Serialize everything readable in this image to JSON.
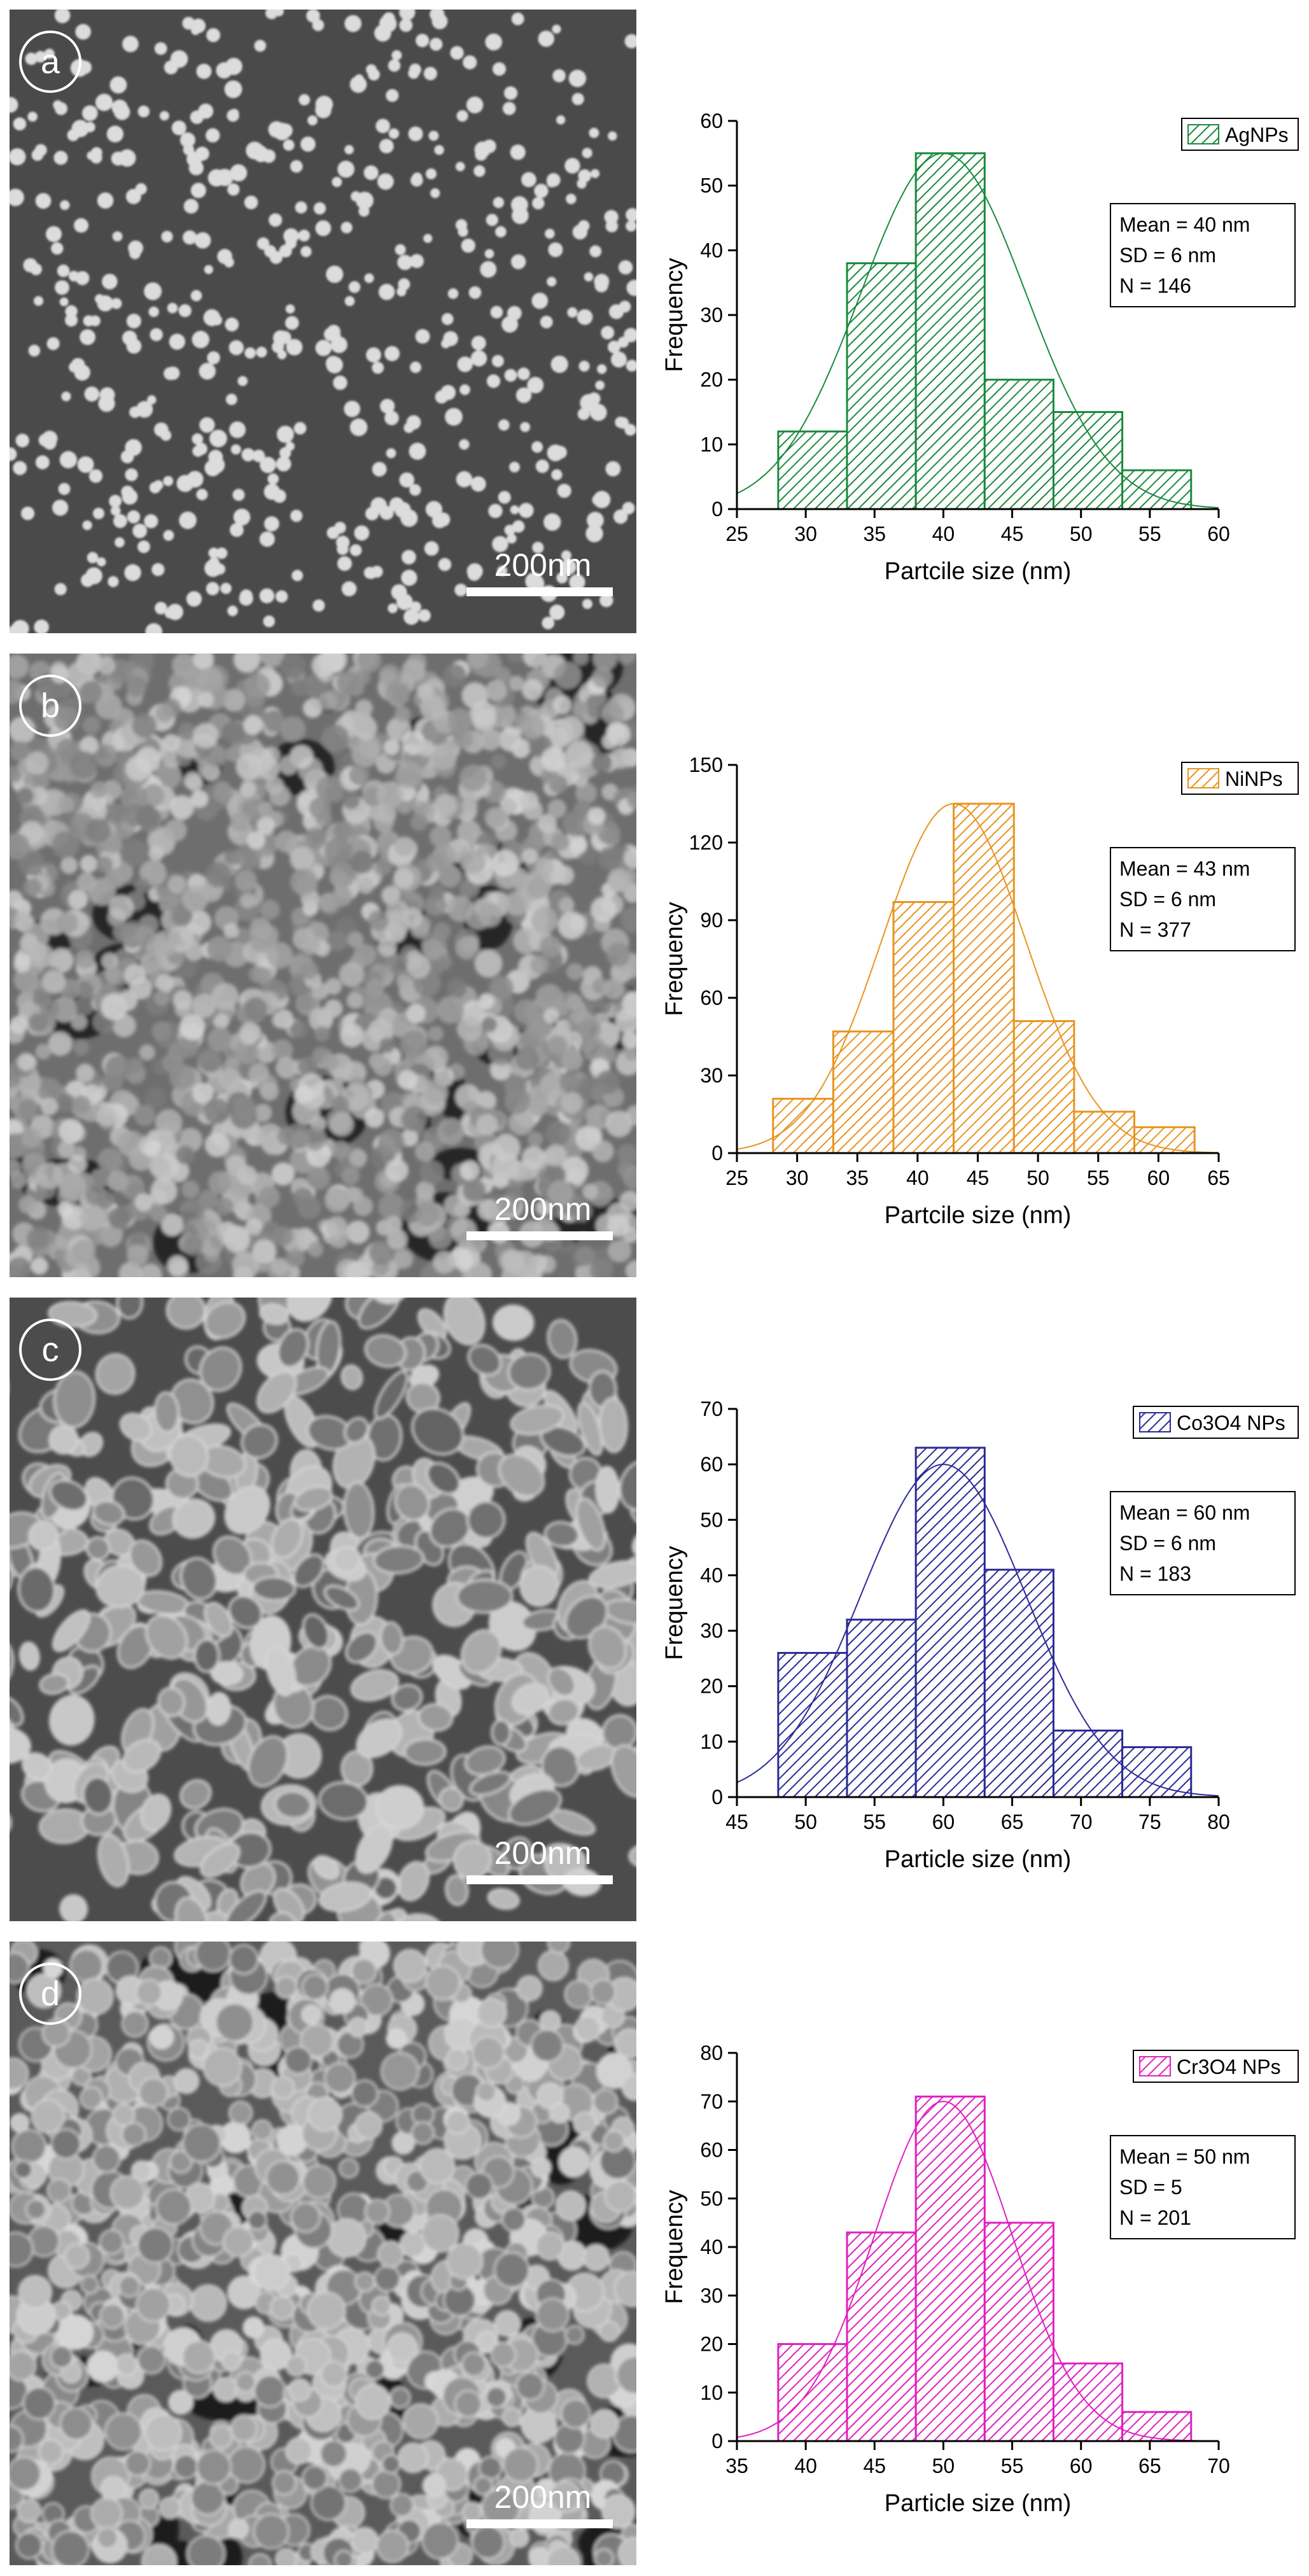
{
  "panels": [
    {
      "label": "a",
      "scale_bar": "200nm",
      "sem_texture": "dots",
      "chart_data": {
        "type": "bar",
        "xlabel": "Partcile size (nm)",
        "ylabel": "Frequency",
        "xlim": [
          25,
          60
        ],
        "ylim": [
          0,
          60
        ],
        "xticks": [
          25,
          30,
          35,
          40,
          45,
          50,
          55,
          60
        ],
        "yticks": [
          0,
          10,
          20,
          30,
          40,
          50,
          60
        ],
        "bin_width": 5,
        "bin_starts": [
          28,
          33,
          38,
          43,
          48,
          53
        ],
        "values": [
          12,
          38,
          55,
          20,
          15,
          6
        ],
        "series": [
          {
            "name": "AgNPs",
            "values": [
              12,
              38,
              55,
              20,
              15,
              6
            ]
          }
        ],
        "color": "#1a8a3c",
        "fit": {
          "type": "gaussian",
          "mean": 40,
          "sd": 6,
          "peak": 55
        },
        "stats": [
          "Mean = 40 nm",
          "SD = 6 nm",
          "N = 146"
        ],
        "legend_position": "top-right",
        "grid": false
      }
    },
    {
      "label": "b",
      "scale_bar": "200nm",
      "sem_texture": "grains",
      "chart_data": {
        "type": "bar",
        "xlabel": "Partcile size (nm)",
        "ylabel": "Frequency",
        "xlim": [
          25,
          65
        ],
        "ylim": [
          0,
          150
        ],
        "xticks": [
          25,
          30,
          35,
          40,
          45,
          50,
          55,
          60,
          65
        ],
        "yticks": [
          0,
          30,
          60,
          90,
          120,
          150
        ],
        "bin_width": 5,
        "bin_starts": [
          28,
          33,
          38,
          43,
          48,
          53,
          58
        ],
        "values": [
          21,
          47,
          97,
          135,
          51,
          16,
          10
        ],
        "series": [
          {
            "name": "NiNPs",
            "values": [
              21,
              47,
              97,
              135,
              51,
              16,
              10
            ]
          }
        ],
        "color": "#e8941f",
        "fit": {
          "type": "gaussian",
          "mean": 43,
          "sd": 6,
          "peak": 135
        },
        "stats": [
          "Mean = 43 nm",
          "SD = 6 nm",
          "N = 377"
        ],
        "legend_position": "top-right",
        "grid": false
      }
    },
    {
      "label": "c",
      "scale_bar": "200nm",
      "sem_texture": "blobs",
      "chart_data": {
        "type": "bar",
        "xlabel": "Particle size (nm)",
        "ylabel": "Frequency",
        "xlim": [
          45,
          80
        ],
        "ylim": [
          0,
          70
        ],
        "xticks": [
          45,
          50,
          55,
          60,
          65,
          70,
          75,
          80
        ],
        "yticks": [
          0,
          10,
          20,
          30,
          40,
          50,
          60,
          70
        ],
        "bin_width": 5,
        "bin_starts": [
          48,
          53,
          58,
          63,
          68,
          73
        ],
        "values": [
          26,
          32,
          63,
          41,
          12,
          9
        ],
        "series": [
          {
            "name": "Co3O4 NPs",
            "values": [
              26,
              32,
              63,
              41,
              12,
              9
            ]
          }
        ],
        "color": "#2a2a96",
        "fit": {
          "type": "gaussian",
          "mean": 60,
          "sd": 6,
          "peak": 60
        },
        "stats": [
          "Mean = 60 nm",
          "SD = 6 nm",
          "N = 183"
        ],
        "legend_position": "top-right",
        "grid": false
      }
    },
    {
      "label": "d",
      "scale_bar": "200nm",
      "sem_texture": "clusters",
      "chart_data": {
        "type": "bar",
        "xlabel": "Particle size (nm)",
        "ylabel": "Frequency",
        "xlim": [
          35,
          70
        ],
        "ylim": [
          0,
          80
        ],
        "xticks": [
          35,
          40,
          45,
          50,
          55,
          60,
          65,
          70
        ],
        "yticks": [
          0,
          10,
          20,
          30,
          40,
          50,
          60,
          70,
          80
        ],
        "bin_width": 5,
        "bin_starts": [
          38,
          43,
          48,
          53,
          58,
          63
        ],
        "values": [
          20,
          43,
          71,
          45,
          16,
          6
        ],
        "series": [
          {
            "name": "Cr3O4 NPs",
            "values": [
              20,
              43,
              71,
              45,
              16,
              6
            ]
          }
        ],
        "color": "#e020c0",
        "fit": {
          "type": "gaussian",
          "mean": 50,
          "sd": 5,
          "peak": 70
        },
        "stats": [
          "Mean = 50 nm",
          "SD = 5",
          "N = 201"
        ],
        "legend_position": "top-right",
        "grid": false
      }
    }
  ]
}
